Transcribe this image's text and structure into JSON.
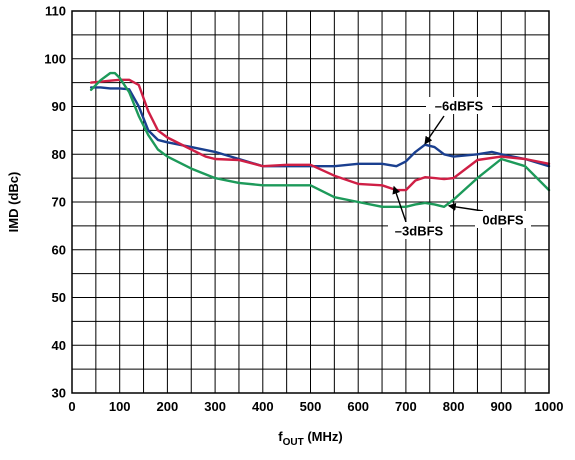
{
  "chart_data": {
    "type": "line",
    "title": "",
    "xlabel_main": "f",
    "xlabel_sub": "OUT",
    "xlabel_unit": " (MHz)",
    "ylabel": "IMD (dBc)",
    "xlim": [
      0,
      1000
    ],
    "ylim": [
      30,
      110
    ],
    "xticks": [
      0,
      100,
      200,
      300,
      400,
      500,
      600,
      700,
      800,
      900,
      1000
    ],
    "yticks": [
      30,
      40,
      50,
      60,
      70,
      80,
      90,
      100,
      110
    ],
    "grid": true,
    "series": [
      {
        "name": "–6dBFS",
        "color": "#1a3f8f",
        "x": [
          40,
          60,
          80,
          100,
          120,
          140,
          160,
          180,
          200,
          250,
          300,
          350,
          400,
          450,
          500,
          550,
          600,
          650,
          680,
          700,
          720,
          740,
          760,
          780,
          800,
          850,
          880,
          900,
          950,
          1000
        ],
        "y": [
          94,
          94,
          93.8,
          93.8,
          93.6,
          90,
          85,
          83,
          82.5,
          81.5,
          80.5,
          79,
          77.5,
          77.5,
          77.5,
          77.5,
          78,
          78,
          77.5,
          78.5,
          80.5,
          82,
          81.5,
          80,
          79.5,
          80,
          80.5,
          80,
          79,
          77.5
        ]
      },
      {
        "name": "–3dBFS",
        "color": "#cf1f45",
        "x": [
          40,
          60,
          80,
          100,
          120,
          140,
          160,
          180,
          200,
          250,
          280,
          300,
          350,
          400,
          450,
          500,
          550,
          600,
          650,
          680,
          700,
          720,
          740,
          760,
          780,
          800,
          850,
          900,
          950,
          1000
        ],
        "y": [
          95,
          95.2,
          95.4,
          95.6,
          95.6,
          94.5,
          89,
          85,
          83.5,
          81,
          79.5,
          79,
          78.8,
          77.5,
          77.8,
          77.8,
          75.5,
          73.8,
          73.5,
          72.5,
          72.5,
          74.5,
          75.2,
          75,
          74.8,
          75,
          78.8,
          79.5,
          79,
          78
        ]
      },
      {
        "name": "0dBFS",
        "color": "#1d9a5a",
        "x": [
          40,
          60,
          80,
          90,
          100,
          120,
          140,
          160,
          180,
          200,
          250,
          300,
          350,
          400,
          450,
          500,
          550,
          600,
          650,
          700,
          720,
          740,
          760,
          780,
          800,
          850,
          900,
          950,
          1000
        ],
        "y": [
          93.5,
          95.5,
          97,
          97,
          96,
          93,
          88,
          84,
          81,
          79.5,
          77,
          75,
          74,
          73.5,
          73.5,
          73.5,
          71,
          70,
          69,
          69,
          69.5,
          69.8,
          69.5,
          69,
          70.5,
          75,
          79,
          77.5,
          72.5
        ]
      }
    ],
    "annotations": [
      {
        "label": "–6dBFS",
        "series": 0,
        "tip": [
          740,
          82.2
        ]
      },
      {
        "label": "–3dBFS",
        "series": 1,
        "tip": [
          675,
          73.2
        ]
      },
      {
        "label": "0dBFS",
        "series": 2,
        "tip": [
          790,
          69.2
        ]
      }
    ]
  }
}
